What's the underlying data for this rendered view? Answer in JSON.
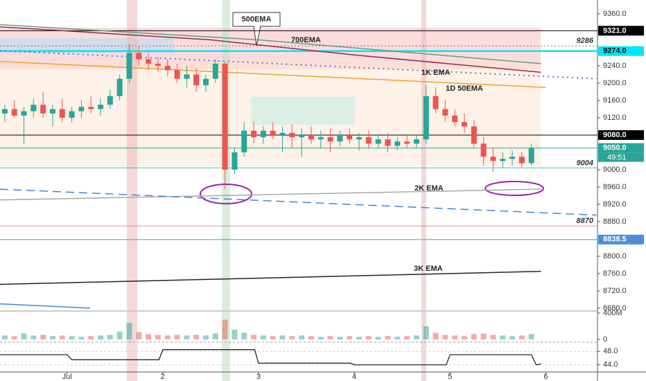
{
  "chart_data": {
    "type": "candlestick",
    "xlim": [
      0.3,
      6.54
    ],
    "ylim": [
      8675,
      9392
    ],
    "xticks": [
      {
        "value": 1,
        "label": "Jul"
      },
      2,
      3,
      4,
      5,
      6
    ],
    "yticks": [
      {
        "value": 9360,
        "label": "9360.0"
      },
      {
        "value": 9240,
        "label": "9240.0"
      },
      {
        "value": 9200,
        "label": "9200.0"
      },
      {
        "value": 9160,
        "label": "9160.0"
      },
      {
        "value": 9120,
        "label": "9120.0"
      },
      {
        "value": 9000,
        "label": "9000.0"
      },
      {
        "value": 8960,
        "label": "8960.0"
      },
      {
        "value": 8920,
        "label": "8920.0"
      },
      {
        "value": 8880,
        "label": "8880.0"
      },
      {
        "value": 8800,
        "label": "8800.0"
      },
      {
        "value": 8760,
        "label": "8760.0"
      },
      {
        "value": 8720,
        "label": "8720.0"
      },
      {
        "value": 8680,
        "label": "8680.0"
      }
    ],
    "up_color": "#26a69a",
    "down_color": "#ef5350",
    "x": [
      0.35,
      0.45,
      0.55,
      0.65,
      0.75,
      0.85,
      0.95,
      1.05,
      1.15,
      1.25,
      1.35,
      1.45,
      1.55,
      1.65,
      1.75,
      1.85,
      1.95,
      2.05,
      2.15,
      2.25,
      2.35,
      2.45,
      2.55,
      2.65,
      2.75,
      2.85,
      2.95,
      3.05,
      3.15,
      3.25,
      3.35,
      3.45,
      3.55,
      3.65,
      3.75,
      3.85,
      3.95,
      4.05,
      4.15,
      4.25,
      4.35,
      4.45,
      4.55,
      4.65,
      4.75,
      4.85,
      4.95,
      5.05,
      5.15,
      5.25,
      5.35,
      5.45,
      5.55,
      5.65,
      5.75,
      5.85
    ],
    "open": [
      9130,
      9140,
      9125,
      9135,
      9150,
      9130,
      9140,
      9120,
      9135,
      9145,
      9140,
      9150,
      9170,
      9210,
      9270,
      9255,
      9245,
      9240,
      9230,
      9210,
      9220,
      9195,
      9210,
      9245,
      9000,
      9040,
      9090,
      9075,
      9090,
      9080,
      9085,
      9075,
      9080,
      9070,
      9075,
      9065,
      9080,
      9070,
      9075,
      9060,
      9070,
      9055,
      9065,
      9060,
      9070,
      9170,
      9140,
      9125,
      9110,
      9100,
      9060,
      9030,
      9020,
      9025,
      9030,
      9015
    ],
    "high": [
      9150,
      9160,
      9145,
      9165,
      9180,
      9150,
      9165,
      9145,
      9160,
      9170,
      9165,
      9185,
      9220,
      9290,
      9285,
      9270,
      9260,
      9255,
      9245,
      9240,
      9235,
      9220,
      9255,
      9250,
      9050,
      9110,
      9110,
      9100,
      9110,
      9100,
      9105,
      9095,
      9100,
      9090,
      9095,
      9090,
      9095,
      9085,
      9090,
      9080,
      9085,
      9075,
      9080,
      9080,
      9195,
      9190,
      9160,
      9140,
      9130,
      9115,
      9075,
      9050,
      9040,
      9045,
      9040,
      9060
    ],
    "low": [
      9110,
      9120,
      9060,
      9120,
      9120,
      9100,
      9110,
      9110,
      9120,
      9130,
      9125,
      9140,
      9160,
      9200,
      9240,
      9230,
      9225,
      9215,
      9200,
      9190,
      9180,
      9180,
      9200,
      8955,
      8990,
      9030,
      9060,
      9060,
      9070,
      9040,
      9050,
      9030,
      9060,
      9050,
      9040,
      9055,
      9060,
      9045,
      9050,
      9050,
      9040,
      9045,
      9050,
      9050,
      9060,
      9130,
      9110,
      9100,
      9085,
      9050,
      9010,
      8995,
      9005,
      9010,
      9005,
      9010
    ],
    "close": [
      9140,
      9125,
      9135,
      9150,
      9130,
      9140,
      9120,
      9135,
      9145,
      9140,
      9150,
      9170,
      9210,
      9270,
      9255,
      9245,
      9240,
      9230,
      9210,
      9220,
      9195,
      9210,
      9245,
      9000,
      9040,
      9090,
      9075,
      9090,
      9080,
      9085,
      9075,
      9080,
      9070,
      9075,
      9065,
      9080,
      9070,
      9075,
      9060,
      9070,
      9055,
      9065,
      9060,
      9070,
      9170,
      9140,
      9125,
      9110,
      9100,
      9060,
      9030,
      9020,
      9025,
      9030,
      9015,
      9050
    ],
    "series": [
      {
        "name": "500EMA",
        "color": "#8e2c48",
        "x": [
          0.3,
          2.5,
          4,
          5.95
        ],
        "values": [
          9330,
          9300,
          9265,
          9225
        ]
      },
      {
        "name": "700EMA",
        "color": "#5e9e7e",
        "x": [
          0.3,
          3,
          5.95
        ],
        "values": [
          9335,
          9300,
          9245
        ]
      },
      {
        "name": "1K EMA",
        "color": "#4a7fd0",
        "dash": "2 5",
        "x": [
          0.3,
          6.53
        ],
        "values": [
          9275,
          9210
        ]
      },
      {
        "name": "1D 50EMA",
        "color": "#f0a030",
        "x": [
          0.3,
          6.0
        ],
        "values": [
          9250,
          9190
        ]
      },
      {
        "name": "2K EMA",
        "color": "#a8a8a8",
        "x": [
          0.3,
          5.95
        ],
        "values": [
          8930,
          8955
        ]
      },
      {
        "name": "3K EMA",
        "color": "#222222",
        "x": [
          0.3,
          5.95
        ],
        "values": [
          8735,
          8765
        ]
      }
    ],
    "lines": [
      {
        "color": "#3d85d8",
        "dash": "12 7",
        "x": [
          0.3,
          6.53
        ],
        "values": [
          8955,
          8895
        ]
      },
      {
        "color": "#3d85d8",
        "x": [
          0.3,
          1.24
        ],
        "values": [
          8690,
          8680
        ]
      }
    ],
    "price_lines": [
      {
        "value": 9321,
        "label": "9321.0",
        "color": "#000000",
        "style": "box"
      },
      {
        "value": 9274,
        "label": "9274.0",
        "color": "#00e5ff",
        "style": "box"
      },
      {
        "value": 9080,
        "label": "9080.0",
        "color": "#000000",
        "style": "box"
      },
      {
        "value": 9050,
        "label": "9050.0",
        "color": "#26a69a",
        "style": "box"
      },
      {
        "value": 8838.5,
        "label": "8838.5",
        "color": "#4a90d9",
        "style": "box"
      },
      {
        "value": 9286,
        "label": "9286",
        "color": "#555555",
        "style": "tag"
      },
      {
        "value": 9004,
        "label": "9004",
        "color": "#26a69a",
        "style": "tag"
      },
      {
        "value": 8870,
        "label": "8870",
        "color": "#e57373",
        "style": "tag"
      }
    ],
    "countdown": "49:51",
    "volume": {
      "ylim": [
        0,
        420
      ],
      "yticks": [
        {
          "value": 400,
          "label": "400M"
        },
        0
      ],
      "values": [
        60,
        50,
        90,
        60,
        70,
        50,
        60,
        50,
        40,
        50,
        60,
        70,
        120,
        250,
        110,
        80,
        70,
        60,
        70,
        60,
        70,
        60,
        90,
        300,
        150,
        100,
        70,
        60,
        50,
        60,
        50,
        60,
        50,
        40,
        50,
        40,
        50,
        40,
        50,
        40,
        50,
        40,
        50,
        60,
        200,
        100,
        70,
        60,
        50,
        80,
        90,
        70,
        60,
        50,
        60,
        80
      ]
    },
    "oscillator": {
      "ylim": [
        42.3,
        50.5
      ],
      "yticks": [
        {
          "value": 48,
          "label": "48.0"
        },
        {
          "value": 44,
          "label": "44.0"
        }
      ],
      "color": "#111111",
      "x": [
        0.3,
        1.0,
        1.05,
        1.96,
        2.0,
        2.96,
        3.0,
        3.96,
        4.0,
        4.96,
        5.0,
        5.85,
        5.9,
        5.95
      ],
      "values": [
        47,
        47,
        45.5,
        45.5,
        48.5,
        48.5,
        44.5,
        44.5,
        44,
        44,
        47,
        47,
        44,
        44.3
      ]
    }
  }
}
